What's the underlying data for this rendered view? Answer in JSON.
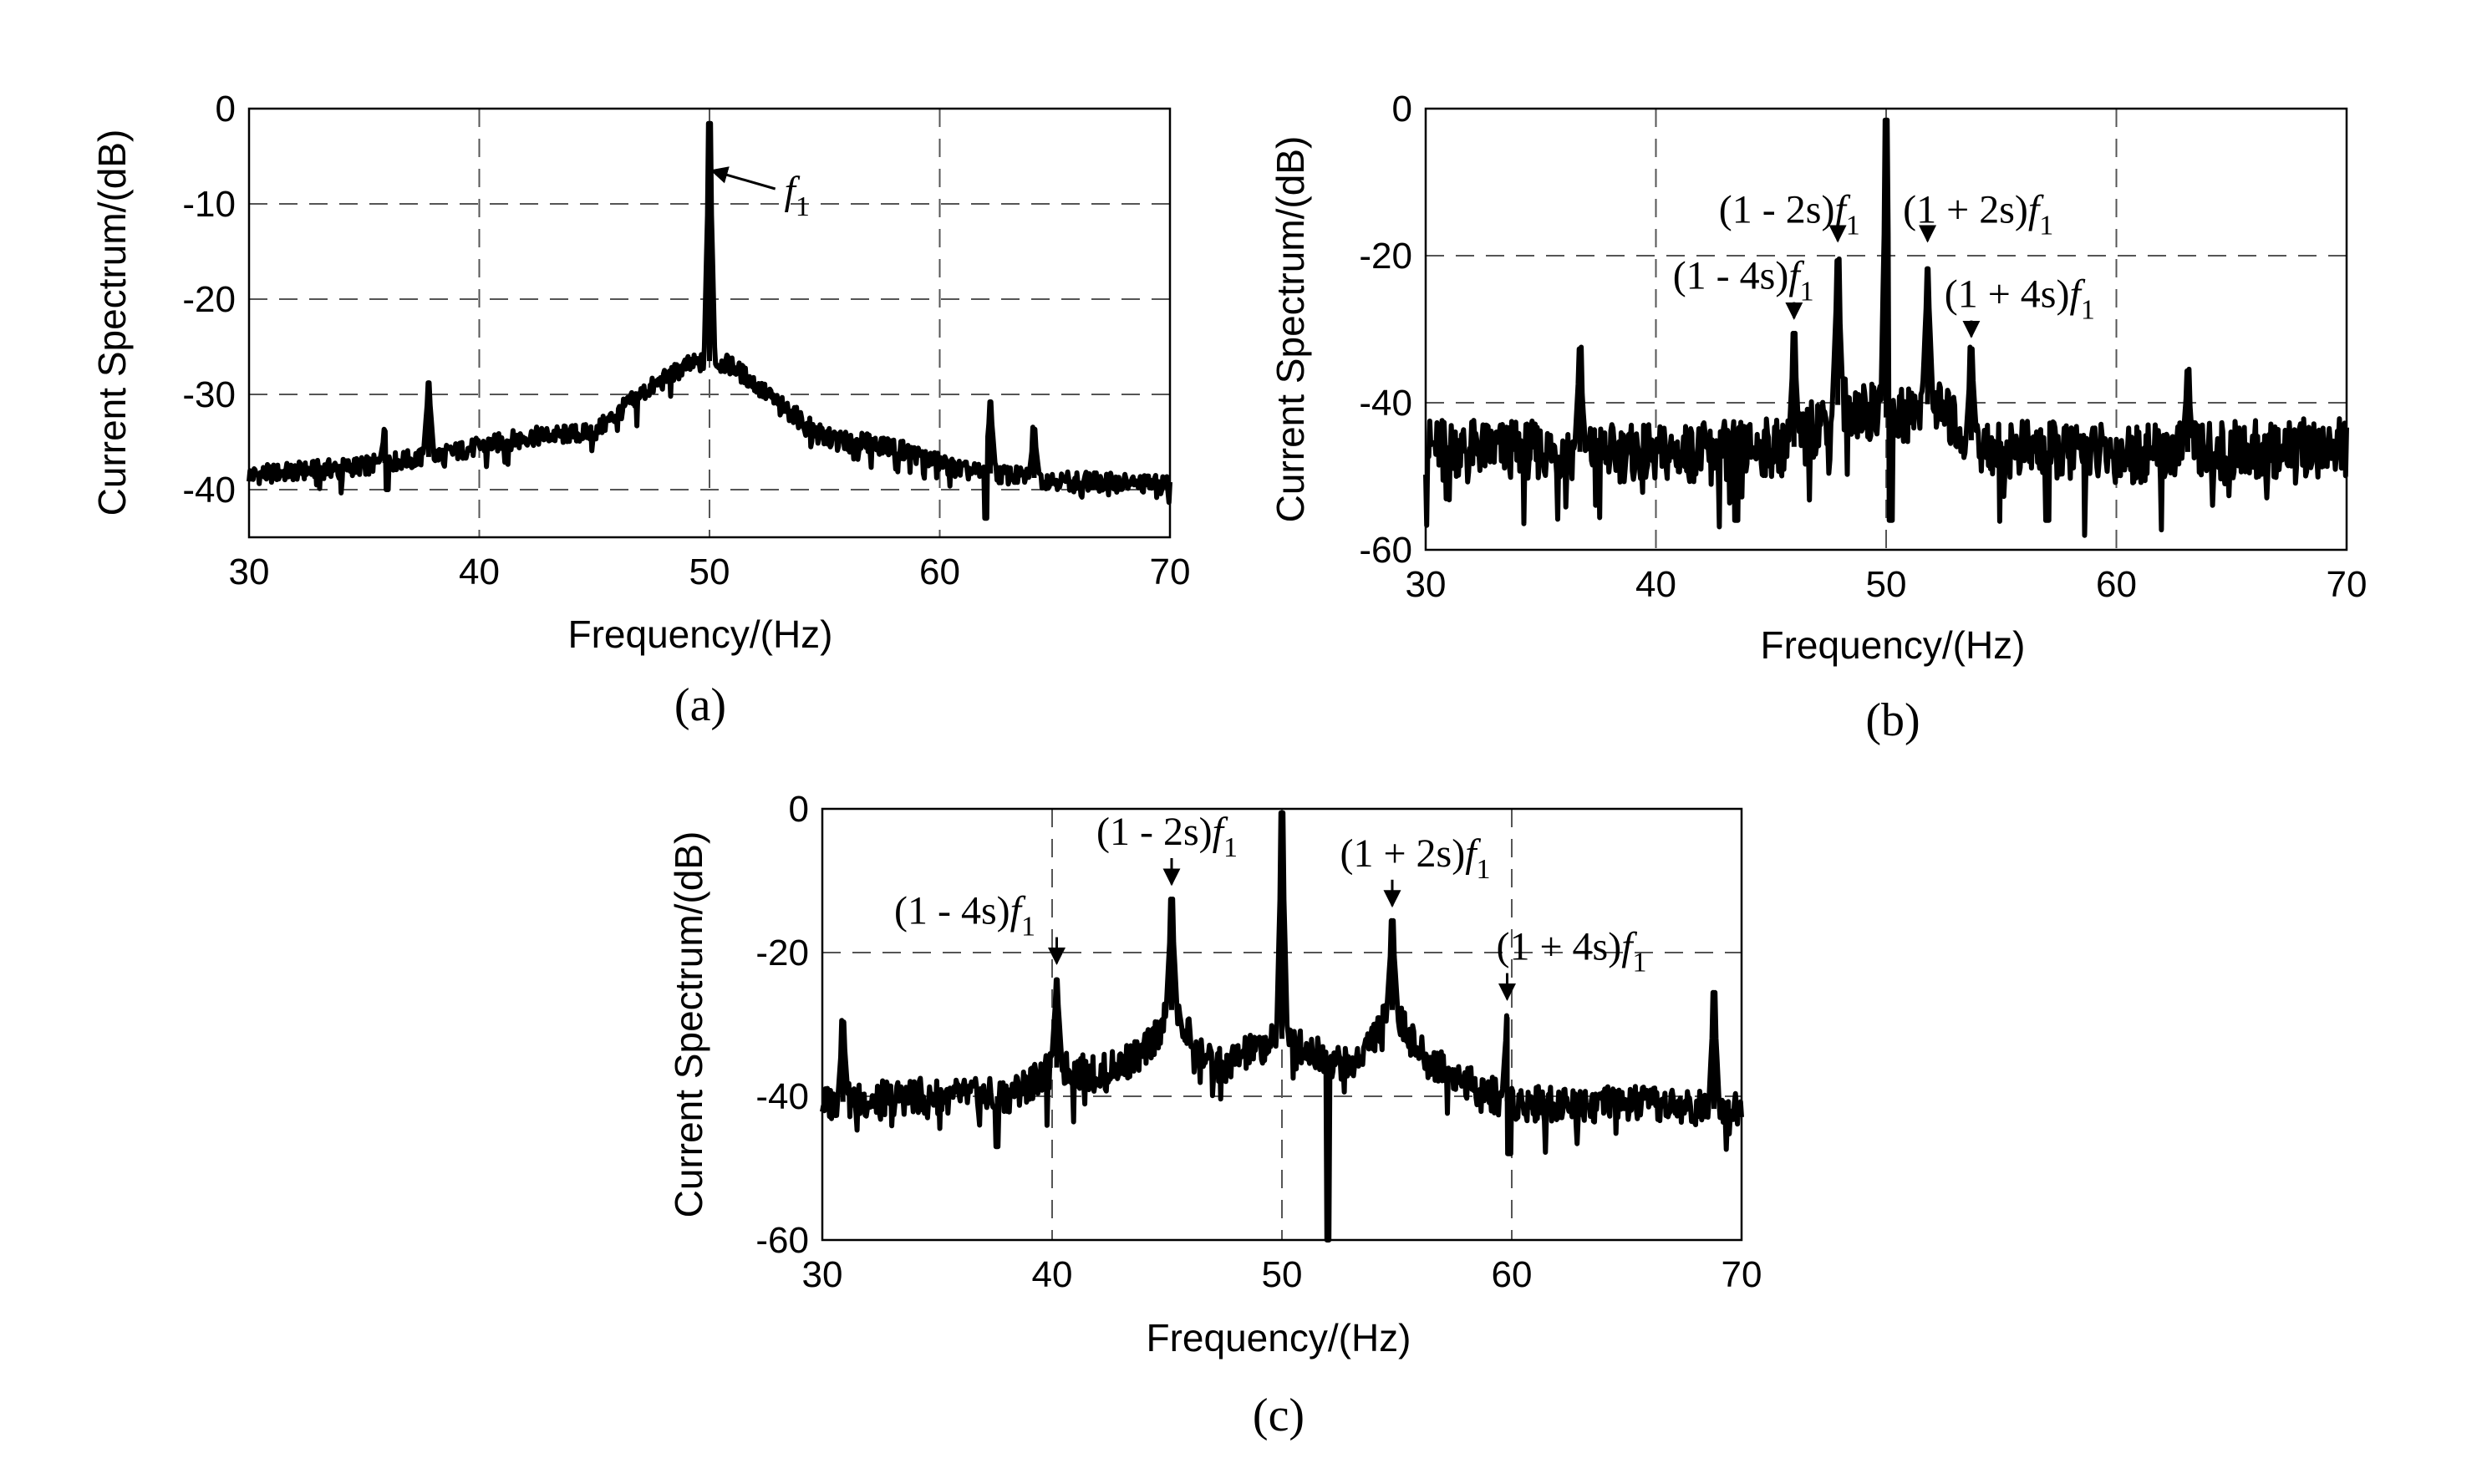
{
  "chart_data": [
    {
      "panel": "a",
      "type": "line",
      "caption": "(a)",
      "xlabel": "Frequency/(Hz)",
      "ylabel": "Current Spectrum/(dB)",
      "xlim": [
        30,
        70
      ],
      "ylim": [
        -45,
        0
      ],
      "xticks": [
        30,
        40,
        50,
        60,
        70
      ],
      "yticks": [
        0,
        -10,
        -20,
        -30,
        -40
      ],
      "grid": true,
      "noise_amplitude": 1,
      "baseline": [
        [
          30,
          -38.5
        ],
        [
          35,
          -37.5
        ],
        [
          38,
          -36.5
        ],
        [
          42,
          -34.5
        ],
        [
          45,
          -34
        ],
        [
          47,
          -30
        ],
        [
          49,
          -27
        ],
        [
          50,
          -26.5
        ],
        [
          51,
          -27
        ],
        [
          53,
          -31
        ],
        [
          55,
          -34.5
        ],
        [
          58,
          -35.5
        ],
        [
          61,
          -38
        ],
        [
          65,
          -39
        ],
        [
          70,
          -39.5
        ]
      ],
      "peaks": [
        {
          "x": 50,
          "y": -2
        },
        {
          "x": 37.8,
          "y": -29
        },
        {
          "x": 35.9,
          "y": -34
        },
        {
          "x": 62.2,
          "y": -31
        },
        {
          "x": 64.1,
          "y": -34
        }
      ],
      "dips": [
        {
          "x": 62.0,
          "y": -43
        },
        {
          "x": 36.0,
          "y": -40
        }
      ],
      "annotations": [
        {
          "base": "f",
          "sub": "1",
          "label": "f1",
          "x": 53.8,
          "y": -10,
          "target_x": 50.1,
          "target_y": -6.5
        }
      ]
    },
    {
      "panel": "b",
      "type": "line",
      "caption": "(b)",
      "xlabel": "Frequency/(Hz)",
      "ylabel": "Current Spectrum/(dB)",
      "xlim": [
        30,
        70
      ],
      "ylim": [
        -60,
        0
      ],
      "xticks": [
        30,
        40,
        50,
        60,
        70
      ],
      "yticks": [
        0,
        -20,
        -40,
        -60
      ],
      "grid": true,
      "noise_amplitude": 4,
      "baseline": [
        [
          30,
          -46
        ],
        [
          40,
          -47
        ],
        [
          46,
          -46
        ],
        [
          48,
          -40
        ],
        [
          50,
          -42
        ],
        [
          52,
          -40
        ],
        [
          54,
          -46
        ],
        [
          60,
          -47
        ],
        [
          70,
          -46
        ]
      ],
      "peaks": [
        {
          "x": 50,
          "y": -2
        },
        {
          "x": 47.9,
          "y": -21
        },
        {
          "x": 51.8,
          "y": -22
        },
        {
          "x": 46.0,
          "y": -31
        },
        {
          "x": 53.7,
          "y": -33
        },
        {
          "x": 36.7,
          "y": -33
        },
        {
          "x": 63.1,
          "y": -36
        }
      ],
      "dips": [
        {
          "x": 43.5,
          "y": -56
        },
        {
          "x": 50.2,
          "y": -56
        },
        {
          "x": 57.0,
          "y": -56
        }
      ],
      "annotations": [
        {
          "base": "(1 - 2s)",
          "sub": "1",
          "label": "(1-2s)f1",
          "x": 45.8,
          "y": -15.5,
          "target_x": 47.9,
          "target_y": -18
        },
        {
          "base": "(1 + 2s)",
          "sub": "1",
          "label": "(1+2s)f1",
          "x": 54.0,
          "y": -15.5,
          "target_x": 51.8,
          "target_y": -18
        },
        {
          "base": "(1 - 4s)",
          "sub": "1",
          "label": "(1-4s)f1",
          "x": 43.8,
          "y": -24.5,
          "target_x": 46.0,
          "target_y": -28.5
        },
        {
          "base": "(1 + 4s)",
          "sub": "1",
          "label": "(1+4s)f1",
          "x": 55.8,
          "y": -27,
          "target_x": 53.7,
          "target_y": -31
        }
      ]
    },
    {
      "panel": "c",
      "type": "line",
      "caption": "(c)",
      "xlabel": "Frequency/(Hz)",
      "ylabel": "Current Spectrum/(dB)",
      "xlim": [
        30,
        70
      ],
      "ylim": [
        -60,
        0
      ],
      "xticks": [
        30,
        40,
        50,
        60,
        70
      ],
      "yticks": [
        0,
        -20,
        -40,
        -60
      ],
      "grid": true,
      "noise_amplitude": 2.5,
      "baseline": [
        [
          30,
          -41
        ],
        [
          34,
          -40
        ],
        [
          38,
          -40
        ],
        [
          40.2,
          -36
        ],
        [
          42,
          -37
        ],
        [
          44,
          -34
        ],
        [
          45.2,
          -28
        ],
        [
          47,
          -36
        ],
        [
          50,
          -32
        ],
        [
          53,
          -36
        ],
        [
          54.8,
          -28
        ],
        [
          56,
          -34
        ],
        [
          58,
          -38
        ],
        [
          60,
          -41
        ],
        [
          65,
          -41
        ],
        [
          70,
          -42
        ]
      ],
      "peaks": [
        {
          "x": 50,
          "y": -1
        },
        {
          "x": 45.2,
          "y": -13
        },
        {
          "x": 54.8,
          "y": -16
        },
        {
          "x": 40.2,
          "y": -24
        },
        {
          "x": 59.8,
          "y": -29
        },
        {
          "x": 68.8,
          "y": -26
        },
        {
          "x": 30.9,
          "y": -30
        }
      ],
      "dips": [
        {
          "x": 52.0,
          "y": -60
        },
        {
          "x": 37.6,
          "y": -47
        },
        {
          "x": 59.9,
          "y": -48
        }
      ],
      "annotations": [
        {
          "base": "(1 - 2s)",
          "sub": "1",
          "label": "(1-2s)f1",
          "x": 45.0,
          "y": -5,
          "target_x": 45.2,
          "target_y": -10.5
        },
        {
          "base": "(1 + 2s)",
          "sub": "1",
          "label": "(1+2s)f1",
          "x": 55.8,
          "y": -8,
          "target_x": 54.8,
          "target_y": -13.5
        },
        {
          "base": "(1 - 4s)",
          "sub": "1",
          "label": "(1-4s)f1",
          "x": 36.2,
          "y": -16,
          "target_x": 40.2,
          "target_y": -21.5
        },
        {
          "base": "(1 + 4s)",
          "sub": "1",
          "label": "(1+4s)f1",
          "x": 62.6,
          "y": -21,
          "target_x": 59.8,
          "target_y": -26.5
        }
      ]
    }
  ]
}
